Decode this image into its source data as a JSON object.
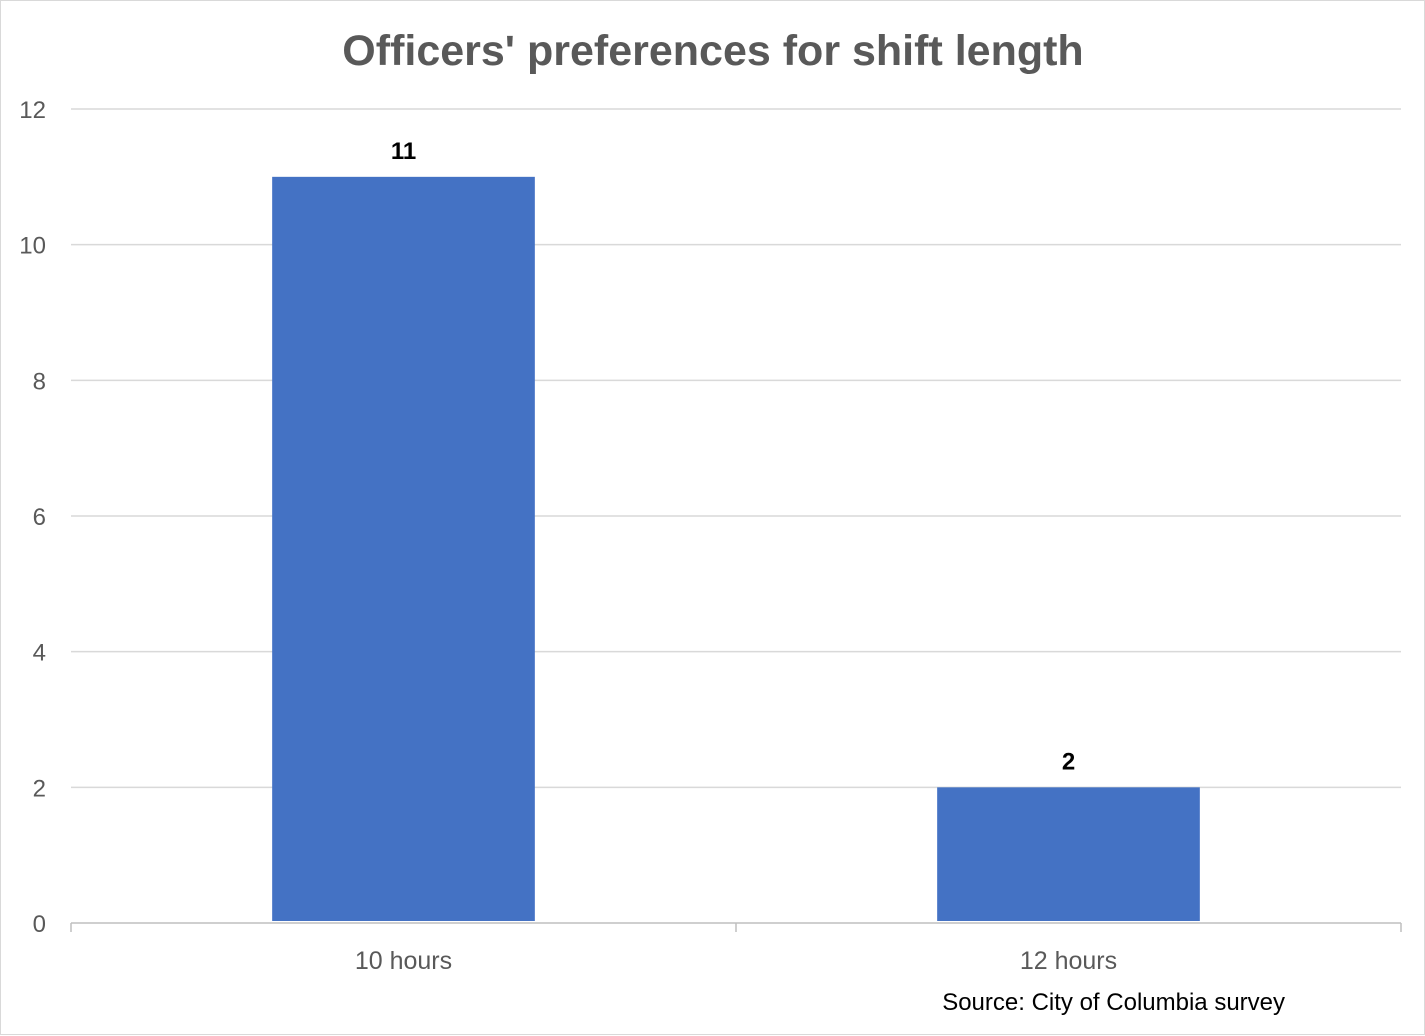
{
  "chart_data": {
    "type": "bar",
    "title": "Officers' preferences for shift length",
    "categories": [
      "10 hours",
      "12 hours"
    ],
    "values": [
      11,
      2
    ],
    "data_labels": [
      "11",
      "2"
    ],
    "yticks": [
      "0",
      "2",
      "4",
      "6",
      "8",
      "10",
      "12"
    ],
    "ylim": [
      0,
      12
    ],
    "xlabel": "",
    "ylabel": "",
    "grid": true,
    "legend": "none",
    "source_note": "Source:  City of Columbia survey",
    "colors": {
      "bar": "#4472c4",
      "grid": "#d9d9d9",
      "axis": "#bfbfbf"
    }
  }
}
